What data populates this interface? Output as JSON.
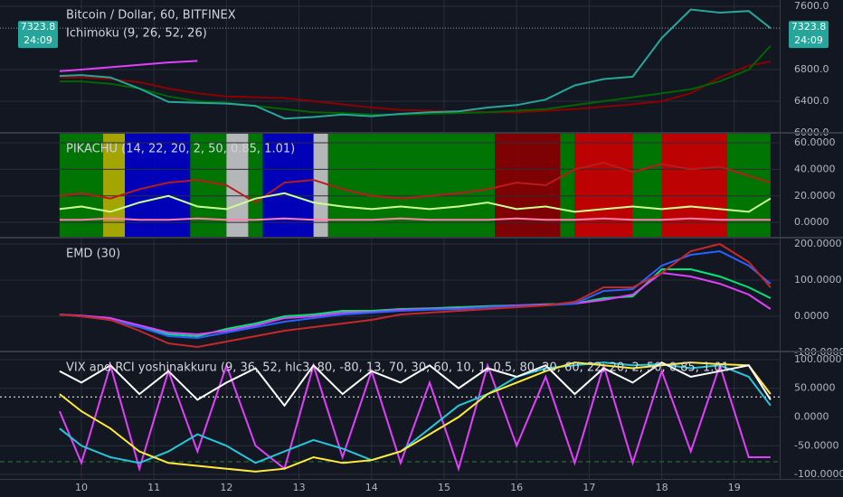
{
  "last_price": 7323.8,
  "countdown": "24:09",
  "chart_data": [
    {
      "type": "line",
      "title": "Bitcoin / Dollar, 60, BITFINEX",
      "subtitle": "Ichimoku (9, 26, 52, 26)",
      "xlim": [
        8.878,
        19.626
      ],
      "ylim": [
        6011,
        7680
      ],
      "yticks": [
        {
          "value": 6000,
          "label": "6000.0"
        },
        {
          "value": 6400,
          "label": "6400.0"
        },
        {
          "value": 6800,
          "label": "6800.0"
        },
        {
          "value": 7600,
          "label": "7600.0"
        }
      ],
      "x": [
        9.7,
        10,
        10.4,
        10.8,
        11.2,
        11.6,
        12,
        12.4,
        12.8,
        13.2,
        13.6,
        14,
        14.4,
        14.8,
        15.2,
        15.6,
        16,
        16.4,
        16.8,
        17.2,
        17.6,
        18,
        18.4,
        18.8,
        19.2,
        19.5
      ],
      "series": [
        {
          "color": "#8b0000",
          "values": [
            6700,
            6700,
            6680,
            6640,
            6560,
            6500,
            6460,
            6450,
            6440,
            6400,
            6360,
            6320,
            6290,
            6280,
            6270,
            6260,
            6260,
            6280,
            6300,
            6330,
            6360,
            6400,
            6500,
            6700,
            6850,
            6900
          ]
        },
        {
          "color": "#006400",
          "values": [
            6650,
            6650,
            6620,
            6560,
            6460,
            6400,
            6380,
            6340,
            6300,
            6260,
            6250,
            6230,
            6230,
            6240,
            6250,
            6260,
            6280,
            6300,
            6350,
            6400,
            6450,
            6500,
            6550,
            6650,
            6800,
            7100
          ]
        },
        {
          "color": "#e040fb",
          "values": [
            6780,
            6800,
            6830,
            6860,
            6890,
            6910,
            null,
            null,
            null,
            null,
            null,
            null,
            null,
            null,
            null,
            null,
            null,
            null,
            null,
            null,
            null,
            null,
            null,
            null,
            null,
            null
          ]
        },
        {
          "color": "#26a69a",
          "values": [
            6720,
            6730,
            6700,
            6560,
            6390,
            6380,
            6370,
            6340,
            6180,
            6200,
            6230,
            6210,
            6240,
            6260,
            6270,
            6320,
            6350,
            6420,
            6600,
            6680,
            6710,
            7200,
            7560,
            7520,
            7540,
            7323.8
          ]
        }
      ]
    },
    {
      "type": "line",
      "title": "PIKACHU (14, 22, 20, 2, 50, 0.85, 1.01)",
      "xlim": [
        8.878,
        19.626
      ],
      "ylim": [
        -10.8,
        66.8
      ],
      "yticks": [
        {
          "value": 0,
          "label": "0.0000"
        },
        {
          "value": 20,
          "label": "20.0000"
        },
        {
          "value": 40,
          "label": "40.0000"
        },
        {
          "value": 60,
          "label": "60.0000"
        }
      ],
      "bands": [
        {
          "from": 9.7,
          "to": 10.3,
          "color": "#008000"
        },
        {
          "from": 10.3,
          "to": 10.6,
          "color": "#b5b500"
        },
        {
          "from": 10.6,
          "to": 11.5,
          "color": "#0000c8"
        },
        {
          "from": 11.5,
          "to": 12.0,
          "color": "#008000"
        },
        {
          "from": 12.0,
          "to": 12.3,
          "color": "#c8c8c8"
        },
        {
          "from": 12.3,
          "to": 12.5,
          "color": "#008000"
        },
        {
          "from": 12.5,
          "to": 13.2,
          "color": "#0000c8"
        },
        {
          "from": 13.2,
          "to": 13.4,
          "color": "#c8c8c8"
        },
        {
          "from": 13.4,
          "to": 15.7,
          "color": "#008000"
        },
        {
          "from": 15.7,
          "to": 16.6,
          "color": "#8b0000"
        },
        {
          "from": 16.6,
          "to": 16.8,
          "color": "#008000"
        },
        {
          "from": 16.8,
          "to": 17.6,
          "color": "#d00000"
        },
        {
          "from": 17.6,
          "to": 18.0,
          "color": "#008000"
        },
        {
          "from": 18.0,
          "to": 18.9,
          "color": "#d00000"
        },
        {
          "from": 18.9,
          "to": 19.5,
          "color": "#008000"
        }
      ],
      "x": [
        9.7,
        10,
        10.4,
        10.8,
        11.2,
        11.6,
        12,
        12.4,
        12.8,
        13.2,
        13.6,
        14,
        14.4,
        14.8,
        15.2,
        15.6,
        16,
        16.4,
        16.8,
        17.2,
        17.6,
        18,
        18.4,
        18.8,
        19.2,
        19.5
      ],
      "series": [
        {
          "color": "#b71c1c",
          "values": [
            20,
            22,
            18,
            25,
            30,
            32,
            28,
            15,
            30,
            32,
            25,
            20,
            18,
            20,
            22,
            25,
            30,
            28,
            40,
            45,
            38,
            44,
            40,
            42,
            35,
            30
          ]
        },
        {
          "color": "#ccff90",
          "values": [
            10,
            12,
            8,
            15,
            20,
            12,
            10,
            18,
            22,
            15,
            12,
            10,
            12,
            10,
            12,
            15,
            10,
            12,
            8,
            10,
            12,
            10,
            12,
            10,
            8,
            18
          ]
        },
        {
          "color": "#ff80ab",
          "values": [
            2,
            2,
            3,
            2,
            2,
            3,
            2,
            2,
            3,
            2,
            2,
            2,
            3,
            2,
            2,
            2,
            3,
            2,
            2,
            3,
            2,
            2,
            3,
            2,
            2,
            2
          ]
        }
      ]
    },
    {
      "type": "line",
      "title": "EMD (30)",
      "xlim": [
        8.878,
        19.626
      ],
      "ylim": [
        -95,
        215
      ],
      "yticks": [
        {
          "value": -100,
          "label": "-100.0000"
        },
        {
          "value": 0,
          "label": "0.0000"
        },
        {
          "value": 100,
          "label": "100.0000"
        },
        {
          "value": 200,
          "label": "200.0000"
        }
      ],
      "x": [
        9.7,
        10,
        10.4,
        10.8,
        11.2,
        11.6,
        12,
        12.4,
        12.8,
        13.2,
        13.6,
        14,
        14.4,
        14.8,
        15.2,
        15.6,
        16,
        16.4,
        16.8,
        17.2,
        17.6,
        18,
        18.4,
        18.8,
        19.2,
        19.5
      ],
      "series": [
        {
          "color": "#00e676",
          "values": [
            5,
            0,
            -10,
            -30,
            -50,
            -55,
            -35,
            -20,
            0,
            5,
            15,
            15,
            20,
            22,
            25,
            28,
            30,
            33,
            35,
            50,
            55,
            130,
            130,
            110,
            80,
            50
          ]
        },
        {
          "color": "#e040fb",
          "values": [
            5,
            2,
            -5,
            -25,
            -45,
            -50,
            -40,
            -25,
            -5,
            0,
            10,
            12,
            18,
            20,
            22,
            26,
            30,
            32,
            35,
            45,
            60,
            120,
            110,
            90,
            60,
            20
          ]
        },
        {
          "color": "#2962ff",
          "values": [
            5,
            0,
            -10,
            -30,
            -55,
            -60,
            -45,
            -30,
            -15,
            -5,
            5,
            10,
            15,
            18,
            20,
            25,
            28,
            30,
            35,
            70,
            75,
            140,
            170,
            180,
            140,
            90
          ]
        },
        {
          "color": "#c62828",
          "values": [
            5,
            0,
            -10,
            -40,
            -75,
            -85,
            -70,
            -55,
            -40,
            -30,
            -20,
            -10,
            5,
            10,
            15,
            20,
            25,
            30,
            40,
            80,
            80,
            120,
            180,
            200,
            150,
            80
          ]
        }
      ]
    },
    {
      "type": "line",
      "title": "VIX and RCI yoshinakkuru (9, 36, 52, hlc3, 80, -80, 13, 70, 30, 60, 10, 1, 0.5, 80, 20, 60, 22, 20, 2, 50, 0.85, 1.01",
      "xlim": [
        8.878,
        19.626
      ],
      "ylim": [
        -107.8,
        112.5
      ],
      "xticks": [
        10,
        11,
        12,
        13,
        14,
        15,
        16,
        17,
        18,
        19
      ],
      "yticks": [
        {
          "value": -100,
          "label": "-100.0000"
        },
        {
          "value": -50,
          "label": "-50.0000"
        },
        {
          "value": 0,
          "label": "0.0000"
        },
        {
          "value": 50,
          "label": "50.0000"
        },
        {
          "value": 100,
          "label": "100.0000"
        }
      ],
      "hlines": [
        {
          "value": 35,
          "color": "#ffffff",
          "dash": "2,3"
        },
        {
          "value": -78,
          "color": "#2e7d32",
          "dash": "5,4"
        }
      ],
      "x": [
        9.7,
        10,
        10.4,
        10.8,
        11.2,
        11.6,
        12,
        12.4,
        12.8,
        13.2,
        13.6,
        14,
        14.4,
        14.8,
        15.2,
        15.6,
        16,
        16.4,
        16.8,
        17.2,
        17.6,
        18,
        18.4,
        18.8,
        19.2,
        19.5
      ],
      "series": [
        {
          "color": "#e040fb",
          "values": [
            10,
            -80,
            90,
            -90,
            80,
            -60,
            90,
            -50,
            -90,
            90,
            -70,
            80,
            -80,
            60,
            -90,
            90,
            -50,
            70,
            -80,
            90,
            -80,
            80,
            -60,
            90,
            -70,
            -70
          ]
        },
        {
          "color": "#26c6da",
          "values": [
            -20,
            -50,
            -70,
            -80,
            -60,
            -30,
            -50,
            -80,
            -60,
            -40,
            -55,
            -75,
            -60,
            -20,
            20,
            40,
            70,
            85,
            90,
            95,
            90,
            92,
            85,
            90,
            70,
            20
          ]
        },
        {
          "color": "#ffeb3b",
          "values": [
            40,
            10,
            -20,
            -60,
            -80,
            -85,
            -90,
            -95,
            -90,
            -70,
            -80,
            -75,
            -60,
            -30,
            0,
            40,
            60,
            80,
            95,
            90,
            85,
            90,
            95,
            92,
            90,
            40
          ]
        },
        {
          "color": "#ffffff",
          "values": [
            80,
            60,
            90,
            40,
            80,
            30,
            60,
            85,
            20,
            90,
            40,
            80,
            60,
            90,
            50,
            85,
            70,
            90,
            40,
            85,
            60,
            95,
            70,
            80,
            90,
            30
          ]
        }
      ]
    }
  ]
}
